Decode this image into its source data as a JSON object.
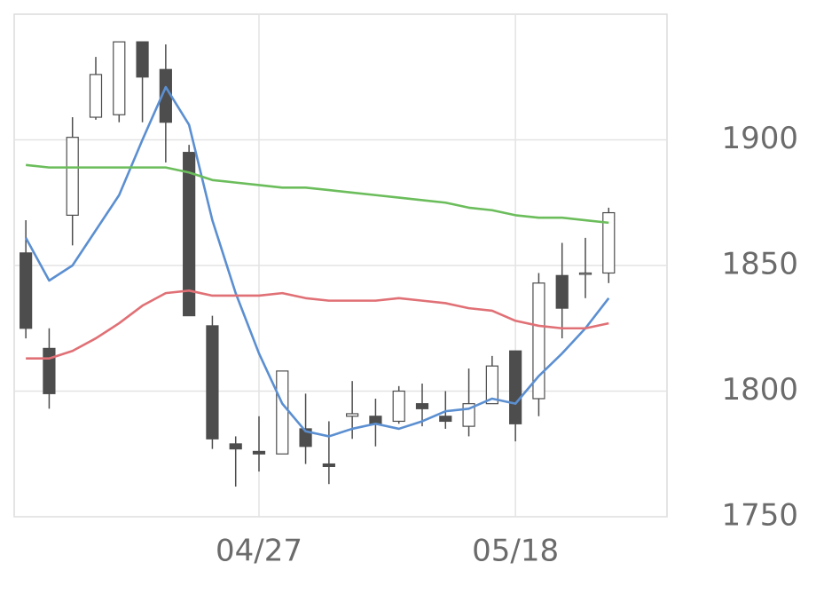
{
  "chart_data": {
    "type": "candlestick",
    "categories": [
      null,
      null,
      null,
      null,
      null,
      null,
      null,
      null,
      null,
      null,
      "04/27",
      null,
      null,
      null,
      null,
      null,
      null,
      null,
      null,
      null,
      null,
      "05/18",
      null,
      null,
      null,
      null
    ],
    "open": [
      1855,
      1817,
      1870,
      1909,
      1910,
      1939,
      1928,
      1895,
      1826,
      1779,
      1776,
      1775,
      1785,
      1771,
      1790,
      1790,
      1788,
      1795,
      1790,
      1786,
      1795,
      1816,
      1797,
      1846,
      1847,
      1847
    ],
    "high": [
      1868,
      1825,
      1909,
      1933,
      1939,
      1939,
      1938,
      1898,
      1830,
      1782,
      1790,
      1808,
      1799,
      1788,
      1804,
      1797,
      1802,
      1803,
      1800,
      1809,
      1814,
      1816,
      1847,
      1859,
      1861,
      1873
    ],
    "low": [
      1821,
      1793,
      1858,
      1908,
      1907,
      1907,
      1891,
      1830,
      1777,
      1762,
      1768,
      1775,
      1771,
      1763,
      1781,
      1778,
      1787,
      1786,
      1785,
      1782,
      1795,
      1780,
      1790,
      1821,
      1837,
      1843
    ],
    "close": [
      1825,
      1799,
      1901,
      1926,
      1939,
      1925,
      1907,
      1830,
      1781,
      1777,
      1775,
      1808,
      1778,
      1770,
      1791,
      1787,
      1800,
      1793,
      1788,
      1795,
      1810,
      1787,
      1843,
      1833,
      1847,
      1871
    ],
    "up_color": "#ffffff",
    "down_color": "#4d4d4d",
    "edge_color": "#4d4d4d",
    "series": [
      {
        "color": "#5b8fd1",
        "values": [
          1861,
          1844,
          1850,
          1864,
          1878,
          1900,
          1921,
          1906,
          1868,
          1839,
          1815,
          1795,
          1784,
          1782,
          1785,
          1787,
          1785,
          1788,
          1792,
          1793,
          1797,
          1795,
          1806,
          1815,
          1825,
          1837
        ]
      },
      {
        "color": "#e07075",
        "values": [
          1813,
          1813,
          1816,
          1821,
          1827,
          1834,
          1839,
          1840,
          1838,
          1838,
          1838,
          1839,
          1837,
          1836,
          1836,
          1836,
          1837,
          1836,
          1835,
          1833,
          1832,
          1828,
          1826,
          1825,
          1825,
          1827
        ]
      },
      {
        "color": "#6bbd5b",
        "values": [
          1890,
          1889,
          1889,
          1889,
          1889,
          1889,
          1889,
          1887,
          1884,
          1883,
          1882,
          1881,
          1881,
          1880,
          1879,
          1878,
          1877,
          1876,
          1875,
          1873,
          1872,
          1870,
          1869,
          1869,
          1868,
          1867
        ]
      }
    ],
    "ylim": [
      1750,
      1950
    ],
    "yticks": [
      1750,
      1800,
      1850,
      1900
    ],
    "grid": true
  }
}
